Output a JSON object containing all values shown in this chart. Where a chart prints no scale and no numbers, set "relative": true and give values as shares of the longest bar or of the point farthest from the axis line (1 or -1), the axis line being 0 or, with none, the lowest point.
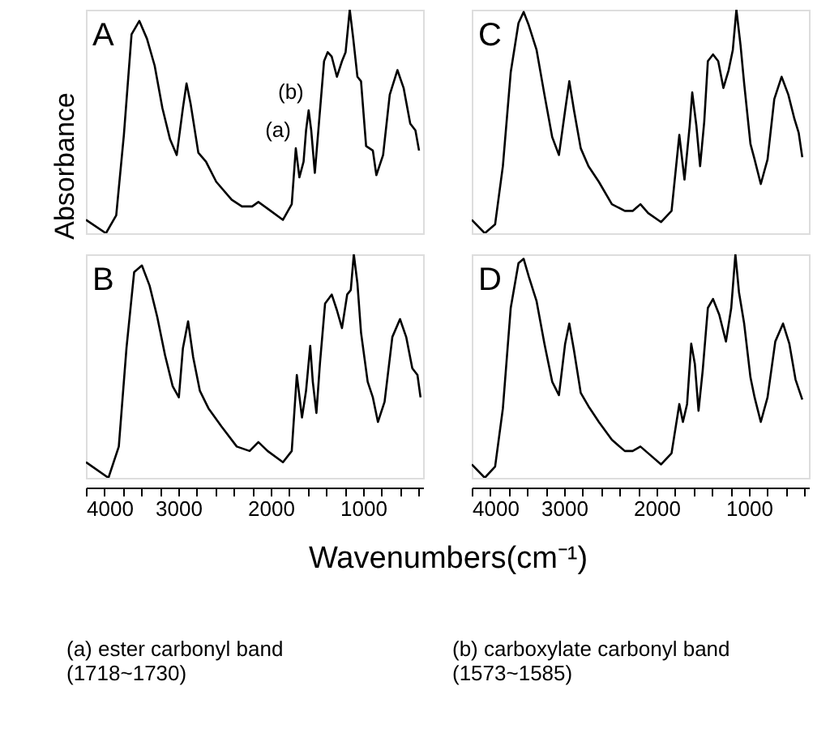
{
  "chart_data": [
    {
      "type": "line",
      "title": "A",
      "ylabel": "Absorbance",
      "relative": true,
      "xlim": [
        4000,
        350
      ],
      "tick_labels": false,
      "xticks": [
        4000,
        3000,
        2000,
        1000
      ],
      "x": [
        4000,
        3783,
        3672,
        3589,
        3506,
        3422,
        3339,
        3256,
        3172,
        3089,
        3017,
        2950,
        2911,
        2867,
        2783,
        2700,
        2589,
        2422,
        2311,
        2200,
        2133,
        2033,
        1867,
        1772,
        1728,
        1689,
        1644,
        1617,
        1589,
        1561,
        1522,
        1478,
        1422,
        1383,
        1339,
        1283,
        1228,
        1189,
        1144,
        1106,
        1061,
        1022,
        967,
        894,
        856,
        783,
        711,
        628,
        561,
        489,
        433,
        394
      ],
      "series": [
        {
          "color": "#000000",
          "values": [
            0.06,
            0,
            0.08,
            0.44,
            0.89,
            0.95,
            0.87,
            0.75,
            0.56,
            0.42,
            0.35,
            0.56,
            0.67,
            0.58,
            0.36,
            0.32,
            0.23,
            0.15,
            0.12,
            0.12,
            0.14,
            0.11,
            0.06,
            0.13,
            0.38,
            0.25,
            0.32,
            0.46,
            0.55,
            0.46,
            0.27,
            0.49,
            0.77,
            0.81,
            0.79,
            0.7,
            0.77,
            0.81,
            1.0,
            0.87,
            0.7,
            0.68,
            0.39,
            0.37,
            0.26,
            0.35,
            0.62,
            0.73,
            0.65,
            0.49,
            0.46,
            0.37
          ]
        }
      ],
      "annotations": [
        {
          "text": "(a)",
          "x": 1728,
          "y": 0.38
        },
        {
          "text": "(b)",
          "x": 1589,
          "y": 0.55
        }
      ]
    },
    {
      "type": "line",
      "title": "C",
      "relative": true,
      "xlim": [
        4000,
        350
      ],
      "tick_labels": false,
      "xticks": [
        4000,
        3000,
        2000,
        1000
      ],
      "x": [
        4000,
        3859,
        3747,
        3663,
        3578,
        3494,
        3438,
        3382,
        3298,
        3213,
        3129,
        3056,
        2989,
        2944,
        2893,
        2820,
        2736,
        2624,
        2483,
        2343,
        2258,
        2174,
        2090,
        1950,
        1837,
        1753,
        1697,
        1641,
        1613,
        1568,
        1528,
        1483,
        1444,
        1388,
        1332,
        1276,
        1219,
        1174,
        1135,
        1090,
        1051,
        983,
        938,
        871,
        798,
        725,
        646,
        573,
        506,
        461,
        422
      ],
      "series": [
        {
          "color": "#000000",
          "values": [
            0.06,
            0,
            0.04,
            0.3,
            0.72,
            0.94,
            0.99,
            0.93,
            0.82,
            0.62,
            0.43,
            0.35,
            0.55,
            0.68,
            0.55,
            0.38,
            0.3,
            0.23,
            0.13,
            0.1,
            0.1,
            0.13,
            0.09,
            0.05,
            0.1,
            0.44,
            0.24,
            0.48,
            0.63,
            0.48,
            0.3,
            0.5,
            0.77,
            0.8,
            0.77,
            0.65,
            0.73,
            0.82,
            1.0,
            0.84,
            0.67,
            0.4,
            0.33,
            0.22,
            0.33,
            0.6,
            0.7,
            0.62,
            0.51,
            0.45,
            0.34
          ]
        }
      ]
    },
    {
      "type": "line",
      "title": "B",
      "xlabel": "Wavenumbers(cm⁻¹)",
      "relative": true,
      "xlim": [
        4000,
        350
      ],
      "xticks": [
        4000,
        {
          "value": 3800,
          "label": null
        },
        {
          "value": 3600,
          "label": null
        },
        {
          "value": 3400,
          "label": null
        },
        {
          "value": 3200,
          "label": null
        },
        3000,
        {
          "value": 2800,
          "label": null
        },
        {
          "value": 2600,
          "label": null
        },
        {
          "value": 2400,
          "label": null
        },
        {
          "value": 2200,
          "label": null
        },
        2000,
        {
          "value": 1800,
          "label": null
        },
        {
          "value": 1600,
          "label": null
        },
        {
          "value": 1400,
          "label": null
        },
        {
          "value": 1200,
          "label": null
        },
        1000,
        {
          "value": 800,
          "label": null
        },
        {
          "value": 600,
          "label": null
        },
        {
          "value": 400,
          "label": null
        }
      ],
      "x": [
        4000,
        3756,
        3644,
        3561,
        3478,
        3394,
        3311,
        3228,
        3144,
        3061,
        2994,
        2950,
        2894,
        2839,
        2767,
        2672,
        2533,
        2367,
        2228,
        2133,
        2033,
        1867,
        1772,
        1717,
        1661,
        1617,
        1572,
        1544,
        1505,
        1467,
        1411,
        1339,
        1283,
        1228,
        1172,
        1133,
        1100,
        1061,
        1022,
        950,
        894,
        839,
        767,
        683,
        600,
        533,
        467,
        411,
        378
      ],
      "series": [
        {
          "color": "#000000",
          "values": [
            0.07,
            0,
            0.14,
            0.58,
            0.92,
            0.95,
            0.86,
            0.72,
            0.55,
            0.41,
            0.36,
            0.58,
            0.7,
            0.54,
            0.39,
            0.31,
            0.23,
            0.14,
            0.12,
            0.16,
            0.12,
            0.07,
            0.12,
            0.46,
            0.27,
            0.39,
            0.59,
            0.43,
            0.29,
            0.51,
            0.78,
            0.82,
            0.75,
            0.67,
            0.82,
            0.84,
            1.0,
            0.87,
            0.65,
            0.43,
            0.36,
            0.25,
            0.34,
            0.63,
            0.71,
            0.63,
            0.49,
            0.46,
            0.36
          ]
        }
      ],
      "annotations": [
        "(a) ester carbonyl band (1718~1730)"
      ]
    },
    {
      "type": "line",
      "title": "D",
      "relative": true,
      "xlim": [
        4000,
        350
      ],
      "xticks": [
        4000,
        {
          "value": 3800,
          "label": null
        },
        {
          "value": 3600,
          "label": null
        },
        {
          "value": 3400,
          "label": null
        },
        {
          "value": 3200,
          "label": null
        },
        3000,
        {
          "value": 2800,
          "label": null
        },
        {
          "value": 2600,
          "label": null
        },
        {
          "value": 2400,
          "label": null
        },
        {
          "value": 2200,
          "label": null
        },
        2000,
        {
          "value": 1800,
          "label": null
        },
        {
          "value": 1600,
          "label": null
        },
        {
          "value": 1400,
          "label": null
        },
        {
          "value": 1200,
          "label": null
        },
        1000,
        {
          "value": 800,
          "label": null
        },
        {
          "value": 600,
          "label": null
        },
        {
          "value": 400,
          "label": null
        }
      ],
      "x": [
        4000,
        3859,
        3747,
        3663,
        3578,
        3494,
        3438,
        3382,
        3298,
        3213,
        3129,
        3056,
        2989,
        2944,
        2893,
        2820,
        2736,
        2624,
        2483,
        2343,
        2258,
        2174,
        2090,
        1950,
        1837,
        1753,
        1714,
        1669,
        1624,
        1585,
        1545,
        1500,
        1444,
        1388,
        1321,
        1248,
        1191,
        1146,
        1107,
        1051,
        983,
        938,
        871,
        798,
        714,
        630,
        562,
        495,
        422
      ],
      "series": [
        {
          "color": "#000000",
          "values": [
            0.06,
            0,
            0.05,
            0.31,
            0.76,
            0.96,
            0.98,
            0.9,
            0.79,
            0.6,
            0.43,
            0.37,
            0.6,
            0.69,
            0.57,
            0.38,
            0.32,
            0.25,
            0.17,
            0.12,
            0.12,
            0.14,
            0.11,
            0.06,
            0.11,
            0.33,
            0.25,
            0.33,
            0.6,
            0.51,
            0.3,
            0.48,
            0.76,
            0.8,
            0.73,
            0.61,
            0.76,
            1.0,
            0.83,
            0.69,
            0.45,
            0.36,
            0.25,
            0.36,
            0.61,
            0.69,
            0.6,
            0.44,
            0.35
          ]
        }
      ],
      "annotations": [
        "(b) carboxylate carbonyl band (1573~1585)"
      ]
    }
  ]
}
